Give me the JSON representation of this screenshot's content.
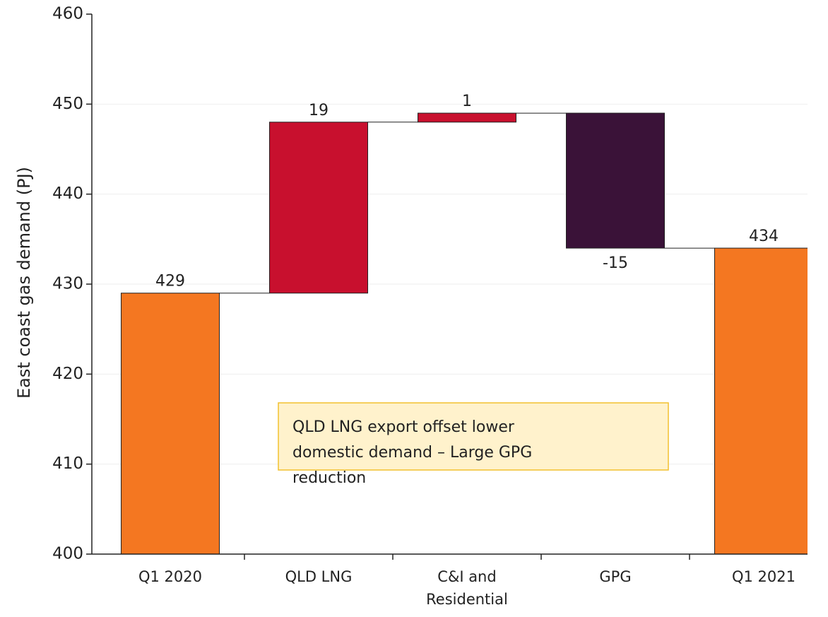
{
  "chart_data": {
    "type": "waterfall",
    "y_label": "East coast gas demand (PJ)",
    "categories": [
      "Q1 2020",
      "QLD LNG",
      "C&I and Residential",
      "GPG",
      "Q1 2021"
    ],
    "values": [
      429,
      19,
      1,
      -15,
      434
    ],
    "colors": [
      "#f47721",
      "#c8102e",
      "#c8102e",
      "#3a1238",
      "#f47721"
    ],
    "ylim": [
      400,
      460
    ],
    "yticks": [
      400,
      410,
      420,
      430,
      440,
      450,
      460
    ],
    "grid": true,
    "annotation": [
      "QLD LNG export offset lower",
      "domestic demand – Large GPG",
      "reduction"
    ]
  }
}
